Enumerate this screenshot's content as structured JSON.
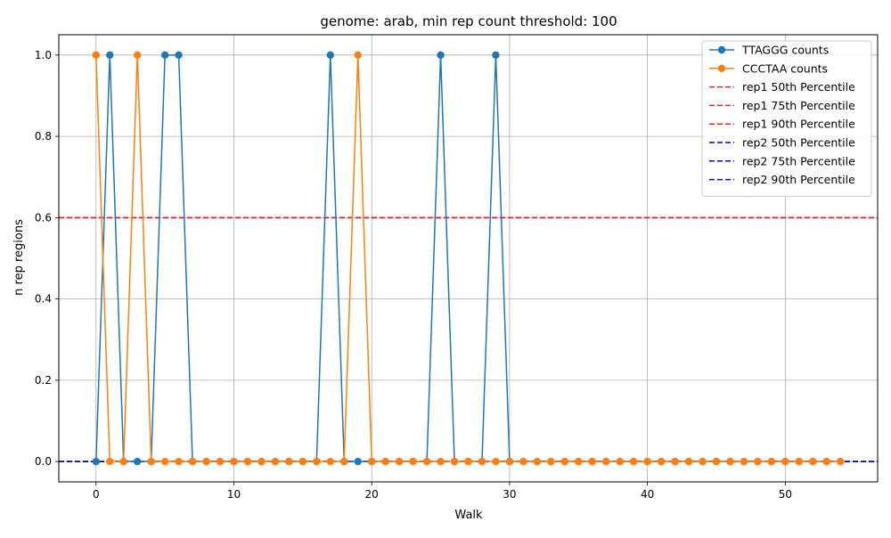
{
  "chart_data": {
    "type": "line",
    "title": "genome: arab, min rep count threshold: 100",
    "xlabel": "Walk",
    "ylabel": "n rep regions",
    "xlim": [
      -2.7,
      56.7
    ],
    "ylim": [
      -0.05,
      1.05
    ],
    "xticks": [
      0,
      10,
      20,
      30,
      40,
      50
    ],
    "yticks": [
      0.0,
      0.2,
      0.4,
      0.6,
      0.8,
      1.0
    ],
    "xtick_labels": [
      "0",
      "10",
      "20",
      "30",
      "40",
      "50"
    ],
    "ytick_labels": [
      "0.0",
      "0.2",
      "0.4",
      "0.6",
      "0.8",
      "1.0"
    ],
    "grid": true,
    "legend_position": "top-right",
    "x": [
      0,
      1,
      2,
      3,
      4,
      5,
      6,
      7,
      8,
      9,
      10,
      11,
      12,
      13,
      14,
      15,
      16,
      17,
      18,
      19,
      20,
      21,
      22,
      23,
      24,
      25,
      26,
      27,
      28,
      29,
      30,
      31,
      32,
      33,
      34,
      35,
      36,
      37,
      38,
      39,
      40,
      41,
      42,
      43,
      44,
      45,
      46,
      47,
      48,
      49,
      50,
      51,
      52,
      53,
      54
    ],
    "series": [
      {
        "name": "TTAGGG counts",
        "color": "#1f77b4",
        "style": "solid",
        "marker": "circle",
        "values": [
          0,
          1,
          0,
          0,
          0,
          1,
          1,
          0,
          0,
          0,
          0,
          0,
          0,
          0,
          0,
          0,
          0,
          1,
          0,
          0,
          0,
          0,
          0,
          0,
          0,
          1,
          0,
          0,
          0,
          1,
          0,
          0,
          0,
          0,
          0,
          0,
          0,
          0,
          0,
          0,
          0,
          0,
          0,
          0,
          0,
          0,
          0,
          0,
          0,
          0,
          0,
          0,
          0,
          0,
          0
        ]
      },
      {
        "name": "CCCTAA counts",
        "color": "#ff7f0e",
        "style": "solid",
        "marker": "circle",
        "values": [
          1,
          0,
          0,
          1,
          0,
          0,
          0,
          0,
          0,
          0,
          0,
          0,
          0,
          0,
          0,
          0,
          0,
          0,
          0,
          1,
          0,
          0,
          0,
          0,
          0,
          0,
          0,
          0,
          0,
          0,
          0,
          0,
          0,
          0,
          0,
          0,
          0,
          0,
          0,
          0,
          0,
          0,
          0,
          0,
          0,
          0,
          0,
          0,
          0,
          0,
          0,
          0,
          0,
          0,
          0
        ]
      }
    ],
    "hlines": [
      {
        "name": "rep1 50th Percentile",
        "value": 0.6,
        "color": "#d62728",
        "style": "dashed"
      },
      {
        "name": "rep1 75th Percentile",
        "value": 0.6,
        "color": "#d62728",
        "style": "dashed"
      },
      {
        "name": "rep1 90th Percentile",
        "value": 0.6,
        "color": "#d62728",
        "style": "dashed"
      },
      {
        "name": "rep2 50th Percentile",
        "value": 0.0,
        "color": "#0000cc",
        "style": "dashed"
      },
      {
        "name": "rep2 75th Percentile",
        "value": 0.0,
        "color": "#0000cc",
        "style": "dashed"
      },
      {
        "name": "rep2 90th Percentile",
        "value": 0.0,
        "color": "#0000cc",
        "style": "dashed"
      }
    ]
  }
}
